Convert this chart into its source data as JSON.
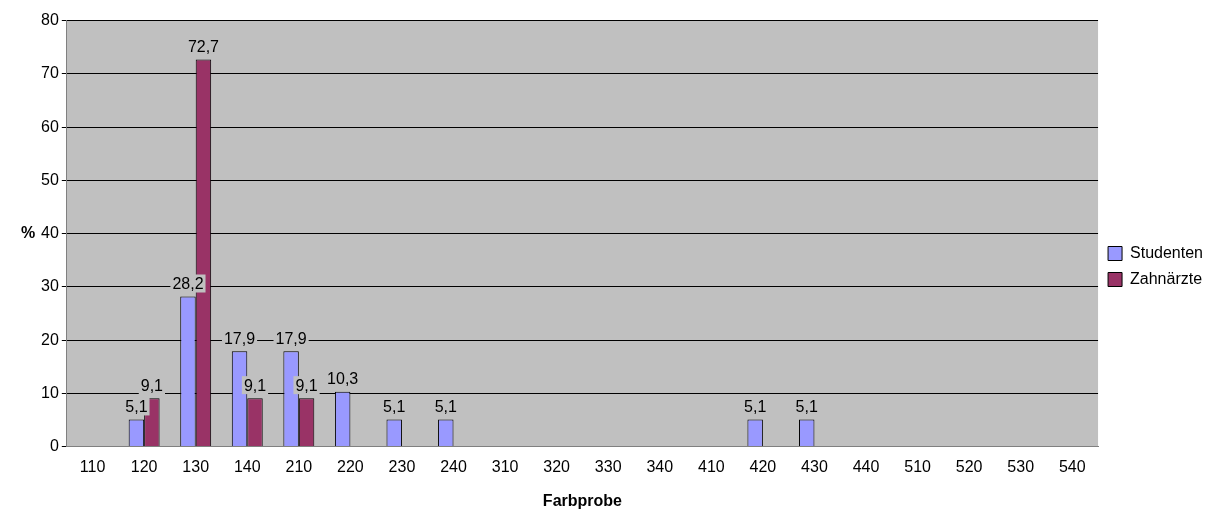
{
  "chart_data": {
    "type": "bar",
    "xlabel": "Farbprobe",
    "ylabel": "%",
    "categories": [
      "110",
      "120",
      "130",
      "140",
      "210",
      "220",
      "230",
      "240",
      "310",
      "320",
      "330",
      "340",
      "410",
      "420",
      "430",
      "440",
      "510",
      "520",
      "530",
      "540"
    ],
    "series": [
      {
        "name": "Studenten",
        "color": "#9999ff",
        "values": [
          null,
          5.1,
          28.2,
          17.9,
          17.9,
          10.3,
          5.1,
          5.1,
          null,
          null,
          null,
          null,
          null,
          5.1,
          5.1,
          null,
          null,
          null,
          null,
          null
        ],
        "value_labels": [
          null,
          "5,1",
          "28,2",
          "17,9",
          "17,9",
          "10,3",
          "5,1",
          "5,1",
          null,
          null,
          null,
          null,
          null,
          "5,1",
          "5,1",
          null,
          null,
          null,
          null,
          null
        ]
      },
      {
        "name": "Zahnärzte",
        "color": "#993366",
        "values": [
          null,
          9.1,
          72.7,
          9.1,
          9.1,
          null,
          null,
          null,
          null,
          null,
          null,
          null,
          null,
          null,
          null,
          null,
          null,
          null,
          null,
          null
        ],
        "value_labels": [
          null,
          "9,1",
          "72,7",
          "9,1",
          "9,1",
          null,
          null,
          null,
          null,
          null,
          null,
          null,
          null,
          null,
          null,
          null,
          null,
          null,
          null,
          null
        ]
      }
    ],
    "ylim": [
      0,
      80
    ],
    "yticks": [
      0,
      10,
      20,
      30,
      40,
      50,
      60,
      70,
      80
    ],
    "grid": "y",
    "legend": "right"
  }
}
